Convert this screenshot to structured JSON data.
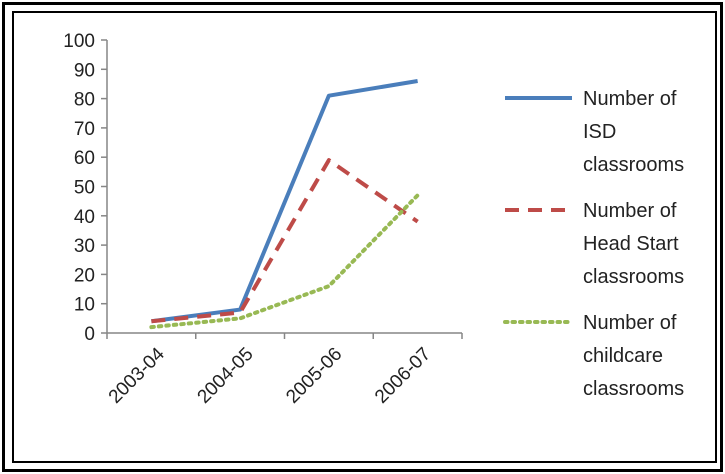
{
  "chart_data": {
    "type": "line",
    "categories": [
      "2003-04",
      "2004-05",
      "2005-06",
      "2006-07"
    ],
    "ylim": [
      0,
      100
    ],
    "yticks": [
      0,
      10,
      20,
      30,
      40,
      50,
      60,
      70,
      80,
      90,
      100
    ],
    "grid": false,
    "legend_position": "right",
    "series": [
      {
        "name_lines": [
          "Number of",
          "ISD",
          "classrooms"
        ],
        "values": [
          4,
          8,
          81,
          86
        ],
        "color": "#4a7ebb",
        "style": "solid"
      },
      {
        "name_lines": [
          "Number of",
          "Head Start",
          "classrooms"
        ],
        "values": [
          4,
          7,
          59,
          38
        ],
        "color": "#be4b48",
        "style": "dashed"
      },
      {
        "name_lines": [
          "Number of",
          "childcare",
          "classrooms"
        ],
        "values": [
          2,
          5,
          16,
          47
        ],
        "color": "#98b954",
        "style": "dotted"
      }
    ]
  }
}
